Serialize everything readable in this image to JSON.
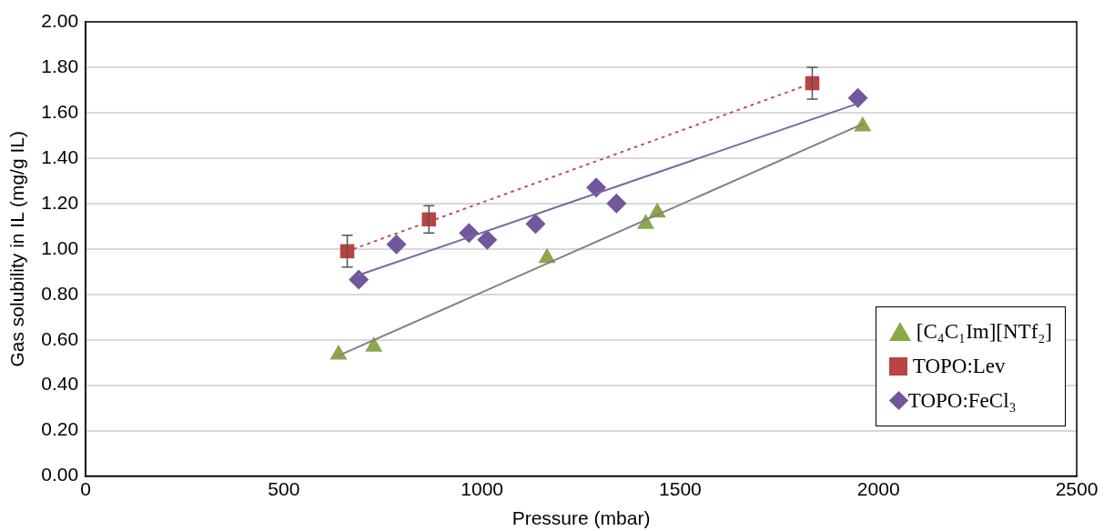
{
  "chart_data": {
    "type": "scatter",
    "xlabel": "Pressure (mbar)",
    "ylabel": "Gas solubility in IL (mg/g IL)",
    "xlim": [
      0,
      2500
    ],
    "xticks": [
      0,
      500,
      1000,
      1500,
      2000,
      2500
    ],
    "ylim": [
      0,
      2
    ],
    "yticks": [
      {
        "value": 0,
        "label": "0.00"
      },
      {
        "value": 0.2,
        "label": "0.20"
      },
      {
        "value": 0.4,
        "label": "0.40"
      },
      {
        "value": 0.6,
        "label": "0.60"
      },
      {
        "value": 0.8,
        "label": "0.80"
      },
      {
        "value": 1,
        "label": "1.00"
      },
      {
        "value": 1.2,
        "label": "1.20"
      },
      {
        "value": 1.4,
        "label": "1.40"
      },
      {
        "value": 1.6,
        "label": "1.60"
      },
      {
        "value": 1.8,
        "label": "1.80"
      },
      {
        "value": 2,
        "label": "2.00"
      }
    ],
    "grid": "y",
    "legend": "bottom right",
    "series": [
      {
        "name": "[C₄C₁Im][NTf₂]",
        "color": "#8aa84a",
        "marker": "triangle",
        "x": [
          638,
          727,
          1164,
          1413,
          1442,
          1960
        ],
        "values": [
          0.535,
          0.57,
          0.96,
          1.11,
          1.16,
          1.54
        ]
      },
      {
        "name": "TOPO:Lev",
        "color": "#b94441",
        "marker": "square",
        "x": [
          660,
          866,
          1833
        ],
        "values": [
          0.99,
          1.13,
          1.73
        ],
        "errors": [
          0.07,
          0.06,
          0.07
        ]
      },
      {
        "name": "TOPO:FeCl₃",
        "color": "#71579c",
        "marker": "diamond",
        "x": [
          689,
          784,
          967,
          1013,
          1135,
          1288,
          1339,
          1948
        ],
        "values": [
          0.865,
          1.02,
          1.07,
          1.04,
          1.11,
          1.27,
          1.2,
          1.665
        ]
      },
      {
        "type": "line",
        "color": "#808080",
        "line_style": "solid",
        "marker": "none",
        "x": [
          638,
          1960
        ],
        "values": [
          0.53,
          1.55
        ]
      },
      {
        "type": "line",
        "color": "#c0504d",
        "line_style": "dotted",
        "marker": "none",
        "x": [
          660,
          1833
        ],
        "values": [
          0.99,
          1.73
        ]
      },
      {
        "type": "line",
        "color": "#8064a2",
        "line_style": "solid",
        "marker": "none",
        "x": [
          689,
          1948
        ],
        "values": [
          0.885,
          1.64
        ]
      }
    ]
  }
}
